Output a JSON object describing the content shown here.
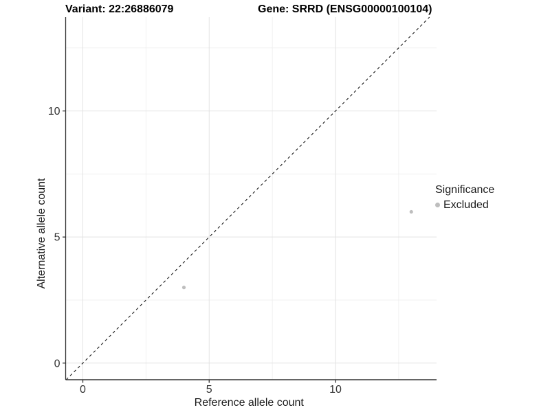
{
  "titles": {
    "variant": "Variant: 22:26886079",
    "gene": "Gene: SRRD (ENSG00000100104)"
  },
  "chart_data": {
    "type": "scatter",
    "title_left": "Variant: 22:26886079",
    "title_right": "Gene: SRRD (ENSG00000100104)",
    "xlabel": "Reference allele count",
    "ylabel": "Alternative allele count",
    "xlim": [
      -0.68,
      14.0
    ],
    "ylim": [
      -0.66,
      13.72
    ],
    "x_major_ticks": [
      0,
      5,
      10
    ],
    "y_major_ticks": [
      0,
      5,
      10
    ],
    "x_minor_ticks": [
      2.5,
      7.5,
      12.5
    ],
    "y_minor_ticks": [
      2.5,
      7.5,
      12.5
    ],
    "grid": true,
    "reference_line": {
      "equation": "y = x",
      "style": "dashed",
      "color": "#1a1a1a"
    },
    "series": [
      {
        "name": "Excluded",
        "color": "#bebebe",
        "points": [
          {
            "x": 4,
            "y": 3
          },
          {
            "x": 13,
            "y": 6
          }
        ]
      }
    ],
    "legend": {
      "title": "Significance",
      "position": "right",
      "items": [
        {
          "label": "Excluded",
          "color": "#bebebe"
        }
      ]
    },
    "colors": {
      "grid_major": "#e2e2e2",
      "grid_minor": "#f0f0f0",
      "axis_line": "#333333",
      "tick_mark": "#333333"
    }
  }
}
